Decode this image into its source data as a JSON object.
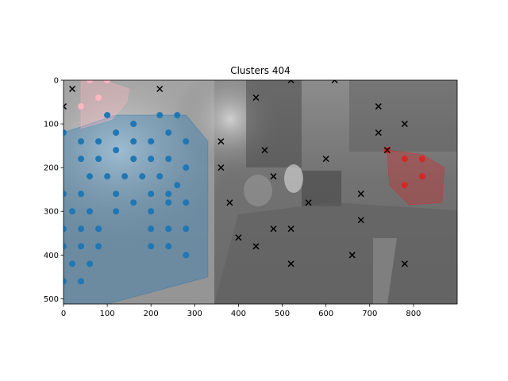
{
  "chart_data": {
    "type": "scatter",
    "title": "Clusters 404",
    "xlabel": "",
    "ylabel": "",
    "xlim": [
      0,
      900
    ],
    "ylim": [
      512,
      0
    ],
    "y_axis_inverted": true,
    "grid": false,
    "legend": "none",
    "background": "grayscale night street photograph",
    "x_ticks": [
      0,
      100,
      200,
      300,
      400,
      500,
      600,
      700,
      800
    ],
    "y_ticks": [
      0,
      100,
      200,
      300,
      400,
      500
    ],
    "series": [
      {
        "color": "#1f77b4",
        "marker": "circle",
        "hull": [
          [
            0,
            120
          ],
          [
            30,
            110
          ],
          [
            120,
            80
          ],
          [
            280,
            80
          ],
          [
            330,
            140
          ],
          [
            330,
            450
          ],
          [
            100,
            512
          ],
          [
            0,
            512
          ]
        ],
        "points": [
          [
            100,
            80
          ],
          [
            220,
            80
          ],
          [
            260,
            80
          ],
          [
            160,
            100
          ],
          [
            0,
            120
          ],
          [
            120,
            120
          ],
          [
            240,
            120
          ],
          [
            40,
            140
          ],
          [
            80,
            140
          ],
          [
            160,
            140
          ],
          [
            200,
            140
          ],
          [
            120,
            160
          ],
          [
            280,
            140
          ],
          [
            40,
            180
          ],
          [
            80,
            180
          ],
          [
            160,
            180
          ],
          [
            200,
            180
          ],
          [
            240,
            180
          ],
          [
            280,
            200
          ],
          [
            60,
            220
          ],
          [
            100,
            220
          ],
          [
            140,
            220
          ],
          [
            180,
            220
          ],
          [
            220,
            220
          ],
          [
            260,
            240
          ],
          [
            0,
            260
          ],
          [
            40,
            260
          ],
          [
            120,
            260
          ],
          [
            200,
            260
          ],
          [
            240,
            260
          ],
          [
            160,
            280
          ],
          [
            240,
            280
          ],
          [
            280,
            280
          ],
          [
            20,
            300
          ],
          [
            60,
            300
          ],
          [
            120,
            300
          ],
          [
            200,
            300
          ],
          [
            0,
            340
          ],
          [
            40,
            340
          ],
          [
            80,
            340
          ],
          [
            200,
            340
          ],
          [
            240,
            340
          ],
          [
            280,
            340
          ],
          [
            0,
            380
          ],
          [
            40,
            380
          ],
          [
            80,
            380
          ],
          [
            200,
            380
          ],
          [
            240,
            380
          ],
          [
            280,
            400
          ],
          [
            20,
            420
          ],
          [
            60,
            420
          ],
          [
            0,
            460
          ],
          [
            40,
            460
          ]
        ]
      },
      {
        "color": "#ffb6c1",
        "marker": "circle",
        "hull": [
          [
            40,
            0
          ],
          [
            90,
            0
          ],
          [
            150,
            20
          ],
          [
            145,
            50
          ],
          [
            110,
            90
          ],
          [
            40,
            110
          ]
        ],
        "points": [
          [
            60,
            0
          ],
          [
            100,
            0
          ],
          [
            80,
            40
          ],
          [
            40,
            60
          ]
        ]
      },
      {
        "color": "#d62728",
        "marker": "circle",
        "hull": [
          [
            740,
            160
          ],
          [
            820,
            170
          ],
          [
            870,
            200
          ],
          [
            865,
            280
          ],
          [
            790,
            285
          ],
          [
            745,
            240
          ]
        ],
        "points": [
          [
            740,
            160
          ],
          [
            780,
            180
          ],
          [
            820,
            180
          ],
          [
            820,
            220
          ],
          [
            780,
            240
          ]
        ]
      },
      {
        "color": "#000000",
        "marker": "x",
        "points": [
          [
            520,
            0
          ],
          [
            620,
            0
          ],
          [
            20,
            20
          ],
          [
            220,
            20
          ],
          [
            440,
            40
          ],
          [
            0,
            60
          ],
          [
            720,
            60
          ],
          [
            780,
            100
          ],
          [
            720,
            120
          ],
          [
            360,
            140
          ],
          [
            740,
            160
          ],
          [
            460,
            160
          ],
          [
            600,
            180
          ],
          [
            360,
            200
          ],
          [
            480,
            220
          ],
          [
            680,
            260
          ],
          [
            380,
            280
          ],
          [
            560,
            280
          ],
          [
            680,
            320
          ],
          [
            480,
            340
          ],
          [
            520,
            340
          ],
          [
            400,
            360
          ],
          [
            440,
            380
          ],
          [
            660,
            400
          ],
          [
            520,
            420
          ],
          [
            780,
            420
          ]
        ]
      }
    ]
  }
}
